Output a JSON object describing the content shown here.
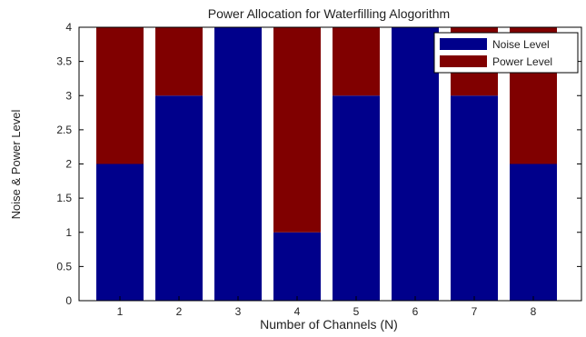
{
  "chart_data": {
    "type": "bar",
    "stacked": true,
    "title": "Power Allocation for Waterfilling Alogorithm",
    "xlabel": "Number of Channels (N)",
    "ylabel": "Noise & Power Level",
    "categories": [
      "1",
      "2",
      "3",
      "4",
      "5",
      "6",
      "7",
      "8"
    ],
    "ylim": [
      0,
      4
    ],
    "yticks": [
      "0",
      "0.5",
      "1",
      "1.5",
      "2",
      "2.5",
      "3",
      "3.5",
      "4"
    ],
    "grid": false,
    "legend_position": "top-right",
    "series": [
      {
        "name": "Noise Level",
        "color": "#00008b",
        "values": [
          2,
          3,
          4,
          1,
          3,
          4,
          3,
          2
        ]
      },
      {
        "name": "Power Level",
        "color": "#800000",
        "values": [
          2,
          1,
          0,
          3,
          1,
          0,
          1,
          2
        ]
      }
    ]
  }
}
